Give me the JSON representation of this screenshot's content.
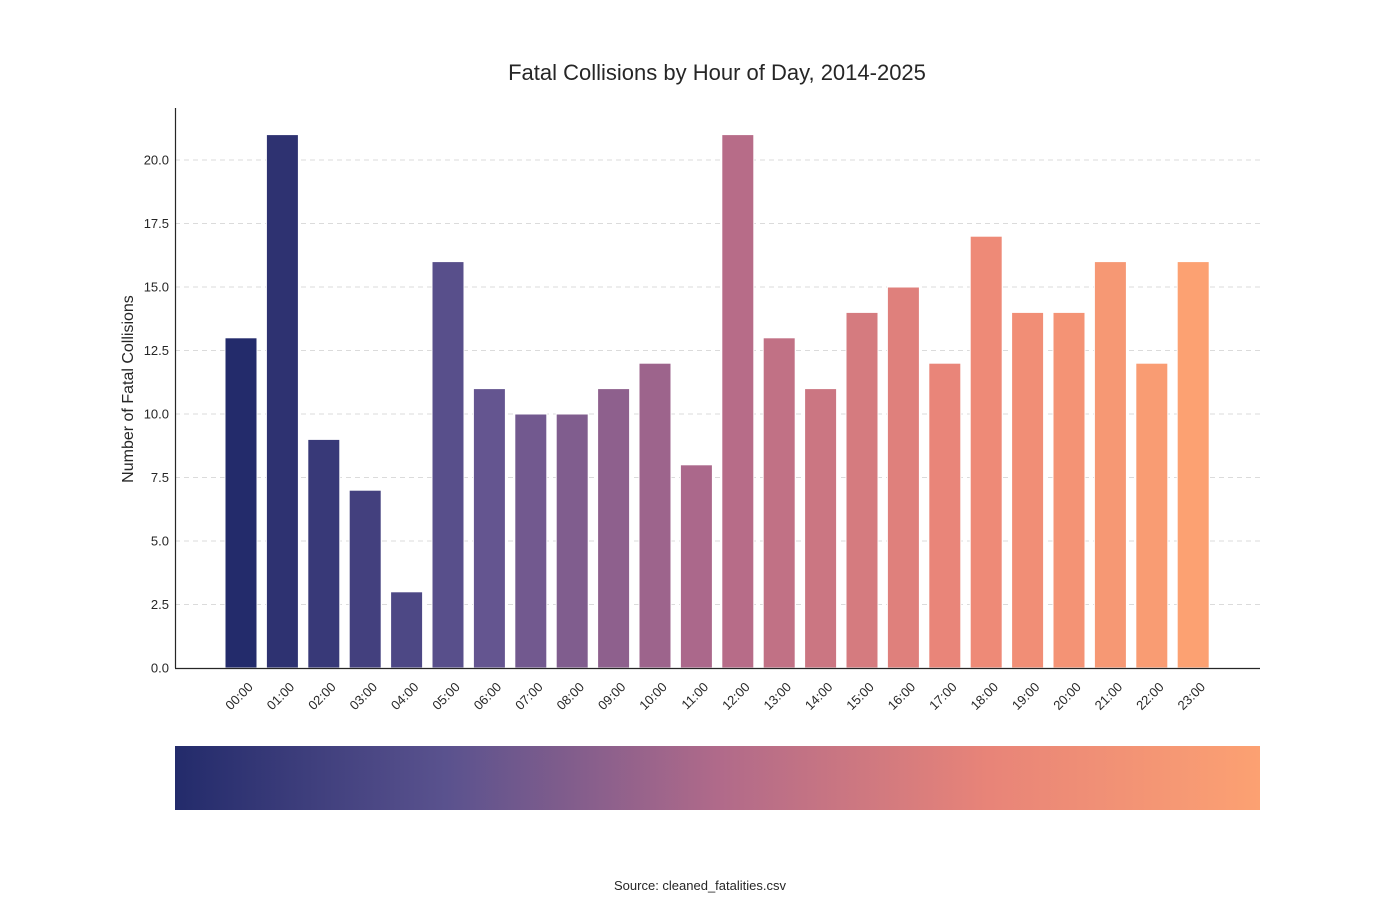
{
  "chart_data": {
    "type": "bar",
    "title": "Fatal Collisions by Hour of Day, 2014-2025",
    "xlabel": "",
    "ylabel": "Number of Fatal Collisions",
    "categories": [
      "00:00",
      "01:00",
      "02:00",
      "03:00",
      "04:00",
      "05:00",
      "06:00",
      "07:00",
      "08:00",
      "09:00",
      "10:00",
      "11:00",
      "12:00",
      "13:00",
      "14:00",
      "15:00",
      "16:00",
      "17:00",
      "18:00",
      "19:00",
      "20:00",
      "21:00",
      "22:00",
      "23:00"
    ],
    "values": [
      13,
      21,
      9,
      7,
      3,
      16,
      11,
      10,
      10,
      11,
      12,
      8,
      21,
      13,
      11,
      14,
      15,
      12,
      17,
      14,
      14,
      16,
      12,
      16
    ],
    "ylim": [
      0,
      22
    ],
    "yticks": [
      "0.0",
      "2.5",
      "5.0",
      "7.5",
      "10.0",
      "12.5",
      "15.0",
      "17.5",
      "20.0"
    ],
    "grid": "y-dashed",
    "colormap_bar": true,
    "colors": {
      "start": "#232b6b",
      "mid": "#6a5a95",
      "mid2": "#b86a86",
      "end": "#fca172"
    }
  },
  "footer": {
    "source": "Source: cleaned_fatalities.csv"
  }
}
